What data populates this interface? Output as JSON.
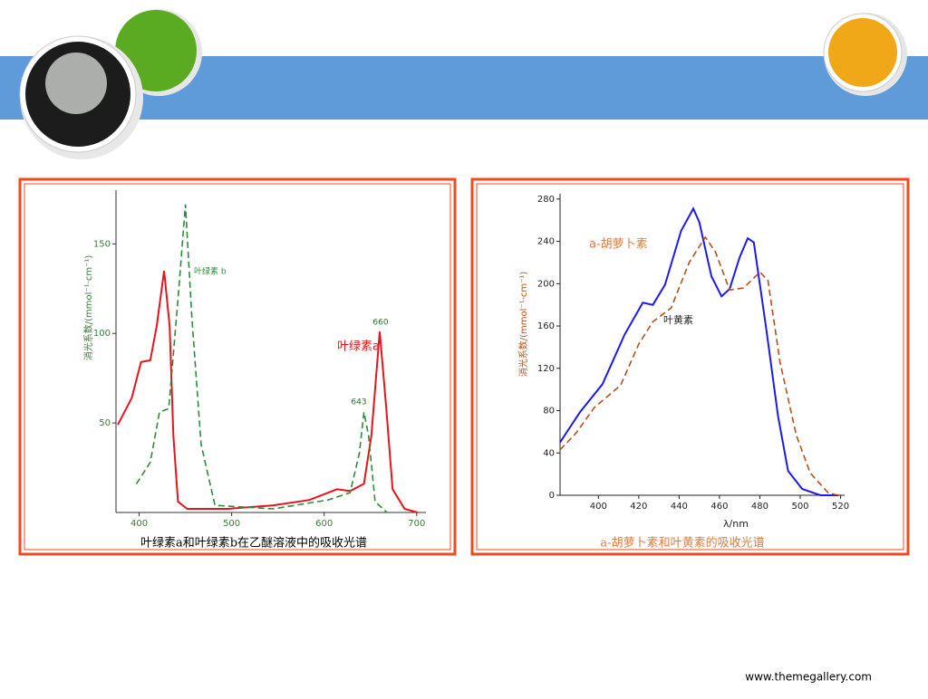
{
  "chart_data": [
    {
      "type": "line",
      "y_label": "消光系数/(mmol⁻¹·cm⁻¹)",
      "caption": "叶绿素a和叶绿素b在乙醚溶液中的吸收光谱",
      "xlim": [
        375,
        710
      ],
      "xticks": [
        400,
        500,
        600,
        700
      ],
      "ylim": [
        0,
        180
      ],
      "yticks": [
        50,
        100,
        150
      ],
      "annotations": [
        "660",
        "643"
      ],
      "series": [
        {
          "name": "叶绿素a",
          "color": "#e8141b",
          "dash": false,
          "x": [
            377,
            392,
            402,
            412,
            419,
            427,
            433,
            437,
            442,
            452,
            496,
            545,
            584,
            614,
            628,
            643,
            651,
            660,
            667,
            674,
            687,
            701
          ],
          "values": [
            49,
            64,
            84,
            85,
            104,
            135,
            104,
            43,
            6,
            2,
            2,
            4,
            7,
            13,
            12,
            16,
            43,
            101,
            59,
            13,
            2,
            0
          ]
        },
        {
          "name": "叶绿素 b",
          "color": "#2e8b3a",
          "dash": true,
          "x": [
            397,
            412,
            422,
            432,
            442,
            450,
            457,
            467,
            482,
            545,
            604,
            628,
            638,
            643,
            648,
            655,
            668
          ],
          "values": [
            16,
            28,
            56,
            58,
            119,
            172,
            109,
            38,
            4,
            2,
            7,
            11,
            33,
            56,
            43,
            6,
            0
          ]
        }
      ]
    },
    {
      "type": "line",
      "y_label": "消光系数/(mmol⁻¹·cm⁻¹)",
      "x_label": "λ/nm",
      "caption": "a-胡萝卜素和叶黄素的吸收光谱",
      "xlim": [
        381,
        522
      ],
      "xticks": [
        400,
        420,
        440,
        460,
        480,
        500,
        520
      ],
      "ylim": [
        0,
        285
      ],
      "yticks": [
        0,
        40,
        80,
        120,
        160,
        200,
        240,
        280
      ],
      "series": [
        {
          "name": "a-胡萝卜素",
          "color": "#1a1aee",
          "dash": false,
          "x": [
            381,
            391,
            402,
            413,
            422,
            427,
            433,
            441,
            447,
            450,
            456,
            461,
            465,
            470,
            474,
            477,
            483,
            489,
            494,
            501,
            510,
            519
          ],
          "values": [
            50,
            79,
            105,
            152,
            182,
            180,
            199,
            250,
            271,
            258,
            207,
            188,
            195,
            225,
            243,
            239,
            160,
            75,
            23,
            6,
            0,
            0
          ]
        },
        {
          "name": "叶黄素",
          "color": "#b5501a",
          "dash": true,
          "x": [
            381,
            389,
            398,
            411,
            420,
            427,
            436,
            445,
            453,
            458,
            465,
            472,
            480,
            484,
            490,
            498,
            505,
            514,
            519
          ],
          "values": [
            43,
            59,
            83,
            104,
            143,
            164,
            177,
            220,
            244,
            230,
            194,
            196,
            211,
            203,
            126,
            57,
            21,
            2,
            0
          ]
        }
      ]
    }
  ],
  "footer": "www.themegallery.com"
}
